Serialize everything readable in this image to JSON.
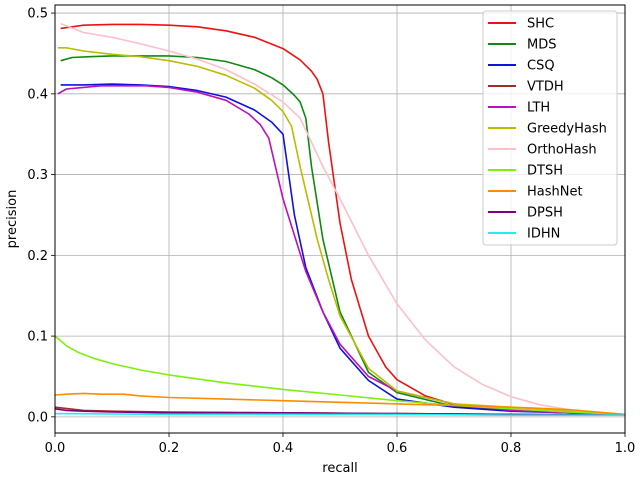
{
  "chart_data": {
    "type": "line",
    "xlabel": "recall",
    "ylabel": "precision",
    "xlim": [
      0.0,
      1.0
    ],
    "ylim": [
      -0.02,
      0.51
    ],
    "xticks": [
      "0.0",
      "0.2",
      "0.4",
      "0.6",
      "0.8",
      "1.0"
    ],
    "yticks": [
      "0.0",
      "0.1",
      "0.2",
      "0.3",
      "0.4",
      "0.5"
    ],
    "grid": true,
    "legend_position": "top-right",
    "series": [
      {
        "name": "SHC",
        "color": "#ee1111",
        "x": [
          0.01,
          0.05,
          0.1,
          0.15,
          0.2,
          0.25,
          0.3,
          0.35,
          0.4,
          0.43,
          0.45,
          0.46,
          0.47,
          0.48,
          0.5,
          0.52,
          0.55,
          0.58,
          0.6,
          0.65,
          0.7,
          0.8,
          0.9,
          1.0
        ],
        "y": [
          0.481,
          0.485,
          0.486,
          0.486,
          0.485,
          0.483,
          0.478,
          0.47,
          0.456,
          0.442,
          0.428,
          0.418,
          0.4,
          0.34,
          0.24,
          0.17,
          0.1,
          0.062,
          0.046,
          0.026,
          0.015,
          0.009,
          0.006,
          0.003
        ]
      },
      {
        "name": "MDS",
        "color": "#118811",
        "x": [
          0.01,
          0.03,
          0.06,
          0.1,
          0.15,
          0.2,
          0.25,
          0.3,
          0.35,
          0.38,
          0.4,
          0.42,
          0.43,
          0.44,
          0.45,
          0.47,
          0.5,
          0.55,
          0.6,
          0.7,
          0.8,
          0.9,
          1.0
        ],
        "y": [
          0.441,
          0.445,
          0.446,
          0.447,
          0.447,
          0.447,
          0.445,
          0.44,
          0.43,
          0.42,
          0.411,
          0.398,
          0.39,
          0.37,
          0.31,
          0.22,
          0.13,
          0.055,
          0.03,
          0.013,
          0.008,
          0.005,
          0.003
        ]
      },
      {
        "name": "CSQ",
        "color": "#1111dd",
        "x": [
          0.01,
          0.05,
          0.1,
          0.15,
          0.2,
          0.25,
          0.3,
          0.35,
          0.38,
          0.4,
          0.41,
          0.42,
          0.44,
          0.47,
          0.5,
          0.55,
          0.6,
          0.7,
          0.8,
          0.9,
          1.0
        ],
        "y": [
          0.411,
          0.411,
          0.412,
          0.411,
          0.409,
          0.404,
          0.396,
          0.38,
          0.365,
          0.35,
          0.3,
          0.25,
          0.185,
          0.13,
          0.085,
          0.045,
          0.022,
          0.012,
          0.007,
          0.005,
          0.003
        ]
      },
      {
        "name": "VTDH",
        "color": "#a52a2a",
        "x": [
          0.0,
          0.05,
          0.1,
          0.2,
          0.4,
          0.6,
          0.8,
          1.0
        ],
        "y": [
          0.012,
          0.008,
          0.007,
          0.006,
          0.005,
          0.004,
          0.003,
          0.002
        ]
      },
      {
        "name": "LTH",
        "color": "#bb11bb",
        "x": [
          0.005,
          0.02,
          0.05,
          0.08,
          0.12,
          0.16,
          0.2,
          0.25,
          0.3,
          0.34,
          0.36,
          0.375,
          0.39,
          0.4,
          0.42,
          0.44,
          0.47,
          0.5,
          0.55,
          0.6,
          0.7,
          0.8,
          0.9,
          1.0
        ],
        "y": [
          0.4,
          0.406,
          0.408,
          0.41,
          0.41,
          0.41,
          0.408,
          0.402,
          0.392,
          0.375,
          0.362,
          0.345,
          0.3,
          0.27,
          0.225,
          0.18,
          0.13,
          0.09,
          0.05,
          0.032,
          0.016,
          0.008,
          0.005,
          0.003
        ]
      },
      {
        "name": "GreedyHash",
        "color": "#bbbb00",
        "x": [
          0.005,
          0.02,
          0.05,
          0.1,
          0.15,
          0.2,
          0.25,
          0.3,
          0.35,
          0.38,
          0.4,
          0.415,
          0.43,
          0.44,
          0.46,
          0.48,
          0.5,
          0.55,
          0.6,
          0.7,
          0.8,
          0.9,
          1.0
        ],
        "y": [
          0.457,
          0.457,
          0.453,
          0.449,
          0.446,
          0.441,
          0.434,
          0.423,
          0.407,
          0.392,
          0.378,
          0.36,
          0.31,
          0.28,
          0.22,
          0.17,
          0.125,
          0.06,
          0.032,
          0.016,
          0.012,
          0.008,
          0.003
        ]
      },
      {
        "name": "OrthoHash",
        "color": "#ffbfc8",
        "x": [
          0.01,
          0.05,
          0.1,
          0.15,
          0.2,
          0.25,
          0.3,
          0.35,
          0.4,
          0.43,
          0.45,
          0.47,
          0.5,
          0.55,
          0.6,
          0.65,
          0.7,
          0.75,
          0.8,
          0.85,
          0.9,
          0.95,
          1.0
        ],
        "y": [
          0.487,
          0.476,
          0.47,
          0.462,
          0.453,
          0.443,
          0.43,
          0.412,
          0.39,
          0.37,
          0.34,
          0.31,
          0.27,
          0.2,
          0.14,
          0.095,
          0.062,
          0.04,
          0.025,
          0.015,
          0.009,
          0.005,
          0.003
        ]
      },
      {
        "name": "DTSH",
        "color": "#80ee11",
        "x": [
          0.0,
          0.01,
          0.02,
          0.04,
          0.07,
          0.1,
          0.15,
          0.2,
          0.3,
          0.4,
          0.5,
          0.6,
          0.7,
          0.8,
          0.9,
          1.0
        ],
        "y": [
          0.1,
          0.094,
          0.088,
          0.08,
          0.072,
          0.066,
          0.058,
          0.052,
          0.042,
          0.034,
          0.027,
          0.02,
          0.014,
          0.01,
          0.006,
          0.003
        ]
      },
      {
        "name": "HashNet",
        "color": "#ff8c00",
        "x": [
          0.0,
          0.02,
          0.05,
          0.08,
          0.12,
          0.15,
          0.2,
          0.3,
          0.4,
          0.5,
          0.6,
          0.7,
          0.8,
          0.9,
          1.0
        ],
        "y": [
          0.027,
          0.028,
          0.029,
          0.028,
          0.028,
          0.026,
          0.024,
          0.022,
          0.02,
          0.018,
          0.016,
          0.014,
          0.012,
          0.009,
          0.003
        ]
      },
      {
        "name": "DPSH",
        "color": "#800080",
        "x": [
          0.0,
          0.02,
          0.05,
          0.1,
          0.2,
          0.4,
          0.6,
          0.8,
          1.0
        ],
        "y": [
          0.01,
          0.008,
          0.007,
          0.006,
          0.005,
          0.005,
          0.004,
          0.003,
          0.002
        ]
      },
      {
        "name": "IDHN",
        "color": "#22eeee",
        "x": [
          0.0,
          0.2,
          0.4,
          0.6,
          0.8,
          1.0
        ],
        "y": [
          0.004,
          0.003,
          0.003,
          0.003,
          0.002,
          0.002
        ]
      }
    ]
  }
}
